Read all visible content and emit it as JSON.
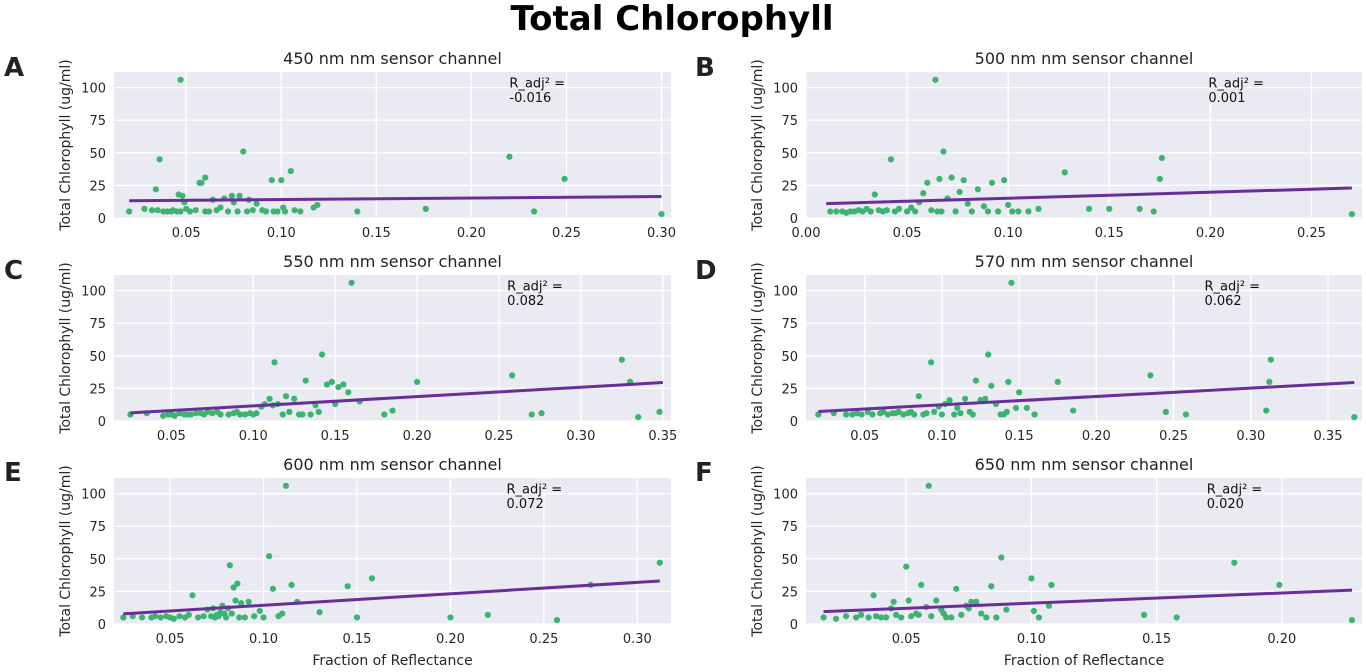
{
  "figure": {
    "title": "Total Chlorophyll",
    "colors": {
      "background": "#EAEAF2",
      "grid": "#FFFFFF",
      "points": "#3CB371",
      "fit_line": "#6A2E9A"
    }
  },
  "chart_data": [
    {
      "letter": "A",
      "type": "scatter",
      "title": "450 nm nm sensor channel",
      "xlabel": "",
      "ylabel": "Total Chlorophyll (ug/ml)",
      "xlim": [
        0.012,
        0.305
      ],
      "ylim": [
        0,
        112
      ],
      "xticks": [
        "0.05",
        "0.10",
        "0.15",
        "0.20",
        "0.25",
        "0.30"
      ],
      "yticks": [
        "0",
        "25",
        "50",
        "75",
        "100"
      ],
      "annotation": [
        "R_adj² =",
        "-0.016"
      ],
      "annotation_pos": [
        0.22,
        100
      ],
      "fit_line": {
        "x": [
          0.02,
          0.3
        ],
        "y": [
          13.2,
          16.5
        ]
      },
      "x": [
        0.02,
        0.028,
        0.032,
        0.034,
        0.035,
        0.036,
        0.038,
        0.04,
        0.042,
        0.043,
        0.045,
        0.046,
        0.047,
        0.047,
        0.048,
        0.049,
        0.05,
        0.052,
        0.055,
        0.057,
        0.058,
        0.06,
        0.06,
        0.062,
        0.064,
        0.066,
        0.068,
        0.07,
        0.072,
        0.074,
        0.075,
        0.077,
        0.078,
        0.08,
        0.082,
        0.083,
        0.085,
        0.087,
        0.09,
        0.092,
        0.095,
        0.096,
        0.098,
        0.1,
        0.101,
        0.102,
        0.105,
        0.107,
        0.11,
        0.117,
        0.119,
        0.14,
        0.176,
        0.22,
        0.233,
        0.249,
        0.3
      ],
      "y": [
        5,
        7,
        6,
        22,
        6,
        45,
        5,
        5,
        5,
        6,
        5,
        18,
        106,
        5,
        17,
        12,
        7,
        5,
        6,
        27,
        27,
        5,
        31,
        5,
        14,
        6,
        8,
        15,
        5,
        17,
        12,
        5,
        17,
        51,
        5,
        14,
        6,
        11,
        6,
        5,
        29,
        5,
        5,
        29,
        8,
        5,
        36,
        6,
        5,
        8,
        10,
        5,
        7,
        47,
        5,
        30,
        3
      ]
    },
    {
      "letter": "B",
      "type": "scatter",
      "title": "500 nm nm sensor channel",
      "xlabel": "",
      "ylabel": "Total Chlorophyll (ug/ml)",
      "xlim": [
        0.0,
        0.275
      ],
      "ylim": [
        0,
        112
      ],
      "xticks": [
        "0.00",
        "0.05",
        "0.10",
        "0.15",
        "0.20",
        "0.25"
      ],
      "yticks": [
        "0",
        "25",
        "50",
        "75",
        "100"
      ],
      "annotation": [
        "R_adj² =",
        "0.001"
      ],
      "annotation_pos": [
        0.199,
        100
      ],
      "fit_line": {
        "x": [
          0.01,
          0.27
        ],
        "y": [
          11.0,
          23.0
        ]
      },
      "x": [
        0.012,
        0.015,
        0.018,
        0.02,
        0.022,
        0.024,
        0.026,
        0.028,
        0.03,
        0.032,
        0.034,
        0.036,
        0.038,
        0.04,
        0.042,
        0.044,
        0.046,
        0.05,
        0.052,
        0.054,
        0.056,
        0.058,
        0.06,
        0.062,
        0.064,
        0.065,
        0.066,
        0.067,
        0.068,
        0.07,
        0.072,
        0.074,
        0.076,
        0.078,
        0.08,
        0.082,
        0.085,
        0.088,
        0.09,
        0.092,
        0.095,
        0.098,
        0.1,
        0.102,
        0.105,
        0.11,
        0.115,
        0.128,
        0.14,
        0.15,
        0.165,
        0.172,
        0.175,
        0.176,
        0.27
      ],
      "y": [
        5,
        5,
        5,
        4,
        5,
        5,
        6,
        5,
        7,
        5,
        18,
        6,
        5,
        6,
        45,
        5,
        7,
        5,
        8,
        5,
        12,
        19,
        27,
        6,
        106,
        5,
        30,
        5,
        51,
        15,
        31,
        5,
        20,
        29,
        11,
        5,
        22,
        9,
        5,
        27,
        5,
        29,
        10,
        5,
        5,
        5,
        7,
        35,
        7,
        7,
        7,
        5,
        30,
        46,
        3
      ]
    },
    {
      "letter": "C",
      "type": "scatter",
      "title": "550 nm nm sensor channel",
      "xlabel": "",
      "ylabel": "Total Chlorophyll (ug/ml)",
      "xlim": [
        0.015,
        0.355
      ],
      "ylim": [
        0,
        112
      ],
      "xticks": [
        "0.05",
        "0.10",
        "0.15",
        "0.20",
        "0.25",
        "0.30",
        "0.35"
      ],
      "yticks": [
        "0",
        "25",
        "50",
        "75",
        "100"
      ],
      "annotation": [
        "R_adj² =",
        "0.082"
      ],
      "annotation_pos": [
        0.255,
        100
      ],
      "fit_line": {
        "x": [
          0.025,
          0.35
        ],
        "y": [
          6.2,
          29.5
        ]
      },
      "x": [
        0.025,
        0.035,
        0.045,
        0.048,
        0.05,
        0.052,
        0.055,
        0.058,
        0.06,
        0.062,
        0.065,
        0.068,
        0.07,
        0.072,
        0.075,
        0.078,
        0.08,
        0.085,
        0.088,
        0.09,
        0.092,
        0.095,
        0.098,
        0.1,
        0.102,
        0.105,
        0.107,
        0.11,
        0.112,
        0.113,
        0.115,
        0.118,
        0.12,
        0.122,
        0.125,
        0.128,
        0.13,
        0.132,
        0.135,
        0.138,
        0.14,
        0.142,
        0.145,
        0.148,
        0.15,
        0.152,
        0.155,
        0.158,
        0.16,
        0.165,
        0.18,
        0.185,
        0.2,
        0.258,
        0.27,
        0.276,
        0.325,
        0.33,
        0.335,
        0.348
      ],
      "y": [
        5,
        6,
        4,
        5,
        5,
        4,
        6,
        5,
        5,
        5,
        6,
        6,
        5,
        7,
        6,
        7,
        5,
        5,
        6,
        7,
        5,
        5,
        6,
        5,
        6,
        11,
        13,
        17,
        12,
        45,
        13,
        5,
        19,
        7,
        17,
        5,
        5,
        31,
        5,
        12,
        7,
        51,
        28,
        30,
        13,
        26,
        28,
        22,
        106,
        15,
        5,
        8,
        30,
        35,
        5,
        6,
        47,
        30,
        3,
        7
      ]
    },
    {
      "letter": "D",
      "type": "scatter",
      "title": "570 nm nm sensor channel",
      "xlabel": "",
      "ylabel": "Total Chlorophyll (ug/ml)",
      "xlim": [
        0.012,
        0.372
      ],
      "ylim": [
        0,
        112
      ],
      "xticks": [
        "0.05",
        "0.10",
        "0.15",
        "0.20",
        "0.25",
        "0.30",
        "0.35"
      ],
      "yticks": [
        "0",
        "25",
        "50",
        "75",
        "100"
      ],
      "annotation": [
        "R_adj² =",
        "0.062"
      ],
      "annotation_pos": [
        0.27,
        100
      ],
      "fit_line": {
        "x": [
          0.02,
          0.367
        ],
        "y": [
          7.3,
          29.5
        ]
      },
      "x": [
        0.02,
        0.03,
        0.038,
        0.042,
        0.045,
        0.048,
        0.052,
        0.055,
        0.06,
        0.062,
        0.065,
        0.068,
        0.07,
        0.072,
        0.075,
        0.078,
        0.08,
        0.082,
        0.085,
        0.088,
        0.09,
        0.093,
        0.095,
        0.098,
        0.1,
        0.102,
        0.105,
        0.108,
        0.11,
        0.112,
        0.115,
        0.118,
        0.12,
        0.122,
        0.125,
        0.128,
        0.13,
        0.132,
        0.135,
        0.138,
        0.14,
        0.142,
        0.143,
        0.145,
        0.148,
        0.15,
        0.155,
        0.16,
        0.175,
        0.185,
        0.235,
        0.245,
        0.258,
        0.31,
        0.312,
        0.313,
        0.367
      ],
      "y": [
        5,
        6,
        5,
        5,
        6,
        5,
        7,
        5,
        6,
        7,
        5,
        6,
        6,
        7,
        5,
        6,
        7,
        5,
        19,
        5,
        6,
        45,
        7,
        11,
        5,
        13,
        16,
        5,
        10,
        6,
        17,
        7,
        5,
        31,
        16,
        17,
        51,
        27,
        13,
        5,
        5,
        7,
        30,
        106,
        10,
        22,
        10,
        5,
        30,
        8,
        35,
        7,
        5,
        8,
        30,
        47,
        3
      ]
    },
    {
      "letter": "E",
      "type": "scatter",
      "title": "600 nm nm sensor channel",
      "xlabel": "Fraction of Reflectance",
      "ylabel": "Total Chlorophyll (ug/ml)",
      "xlim": [
        0.02,
        0.318
      ],
      "ylim": [
        0,
        112
      ],
      "xticks": [
        "0.05",
        "0.10",
        "0.15",
        "0.20",
        "0.25",
        "0.30"
      ],
      "yticks": [
        "0",
        "25",
        "50",
        "75",
        "100"
      ],
      "annotation": [
        "R_adj² =",
        "0.072"
      ],
      "annotation_pos": [
        0.23,
        100
      ],
      "fit_line": {
        "x": [
          0.025,
          0.312
        ],
        "y": [
          7.8,
          33.0
        ]
      },
      "x": [
        0.025,
        0.03,
        0.035,
        0.04,
        0.042,
        0.045,
        0.048,
        0.05,
        0.052,
        0.055,
        0.058,
        0.06,
        0.062,
        0.065,
        0.068,
        0.07,
        0.072,
        0.073,
        0.074,
        0.075,
        0.076,
        0.077,
        0.078,
        0.079,
        0.08,
        0.081,
        0.082,
        0.083,
        0.084,
        0.085,
        0.086,
        0.087,
        0.088,
        0.09,
        0.092,
        0.095,
        0.098,
        0.1,
        0.103,
        0.105,
        0.108,
        0.11,
        0.112,
        0.115,
        0.118,
        0.13,
        0.145,
        0.15,
        0.158,
        0.2,
        0.22,
        0.257,
        0.275,
        0.312
      ],
      "y": [
        5,
        6,
        5,
        5,
        6,
        5,
        6,
        5,
        4,
        6,
        5,
        7,
        22,
        5,
        6,
        11,
        6,
        12,
        5,
        7,
        6,
        9,
        14,
        8,
        5,
        12,
        45,
        8,
        28,
        18,
        31,
        5,
        16,
        5,
        17,
        6,
        10,
        5,
        52,
        27,
        6,
        8,
        106,
        30,
        17,
        9,
        29,
        5,
        35,
        5,
        7,
        3,
        30,
        47
      ]
    },
    {
      "letter": "F",
      "type": "scatter",
      "title": "650 nm nm sensor channel",
      "xlabel": "Fraction of Reflectance",
      "ylabel": "Total Chlorophyll (ug/ml)",
      "xlim": [
        0.01,
        0.232
      ],
      "ylim": [
        0,
        112
      ],
      "xticks": [
        "0.05",
        "0.10",
        "0.15",
        "0.20"
      ],
      "yticks": [
        "0",
        "25",
        "50",
        "75",
        "100"
      ],
      "annotation": [
        "R_adj² =",
        "0.020"
      ],
      "annotation_pos": [
        0.17,
        100
      ],
      "fit_line": {
        "x": [
          0.017,
          0.228
        ],
        "y": [
          9.5,
          26.0
        ]
      },
      "x": [
        0.017,
        0.022,
        0.026,
        0.03,
        0.032,
        0.035,
        0.037,
        0.038,
        0.04,
        0.042,
        0.044,
        0.045,
        0.046,
        0.048,
        0.05,
        0.051,
        0.052,
        0.054,
        0.055,
        0.056,
        0.058,
        0.059,
        0.06,
        0.062,
        0.064,
        0.065,
        0.066,
        0.068,
        0.07,
        0.072,
        0.074,
        0.075,
        0.076,
        0.078,
        0.08,
        0.082,
        0.084,
        0.086,
        0.088,
        0.09,
        0.1,
        0.101,
        0.103,
        0.107,
        0.108,
        0.145,
        0.158,
        0.181,
        0.199,
        0.228
      ],
      "y": [
        5,
        4,
        6,
        5,
        7,
        5,
        22,
        6,
        5,
        5,
        12,
        17,
        7,
        5,
        44,
        18,
        6,
        8,
        7,
        30,
        13,
        106,
        6,
        18,
        11,
        8,
        5,
        5,
        27,
        7,
        14,
        12,
        17,
        17,
        8,
        5,
        29,
        5,
        51,
        11,
        35,
        10,
        5,
        14,
        30,
        7,
        5,
        47,
        30,
        3
      ]
    }
  ]
}
